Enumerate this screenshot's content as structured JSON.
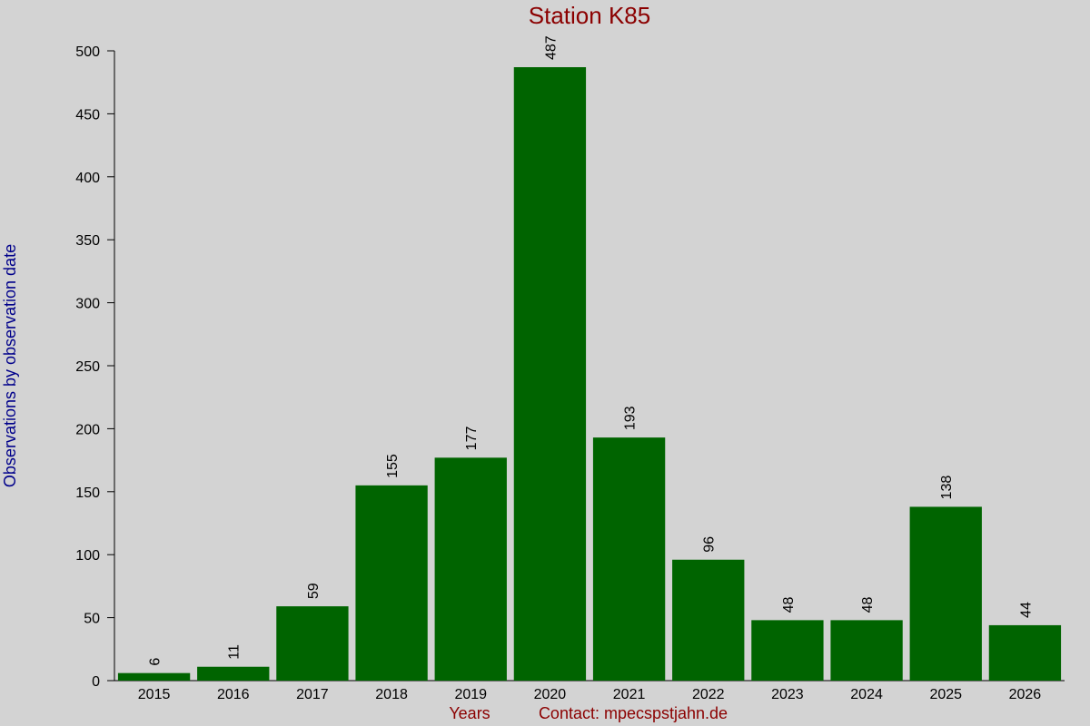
{
  "chart_data": {
    "type": "bar",
    "title": "Station K85",
    "x_label": "Years",
    "contact": "Contact: mpecspstjahn.de",
    "y_label": "Observations by observation date",
    "categories": [
      "2015",
      "2016",
      "2017",
      "2018",
      "2019",
      "2020",
      "2021",
      "2022",
      "2023",
      "2024",
      "2025",
      "2026"
    ],
    "values": [
      6,
      11,
      59,
      155,
      177,
      487,
      193,
      96,
      48,
      48,
      138,
      44
    ],
    "color": "#006400",
    "ylim": [
      0,
      500
    ],
    "yticks": [
      0,
      50,
      100,
      150,
      200,
      250,
      300,
      350,
      400,
      450,
      500
    ],
    "grid": false
  }
}
